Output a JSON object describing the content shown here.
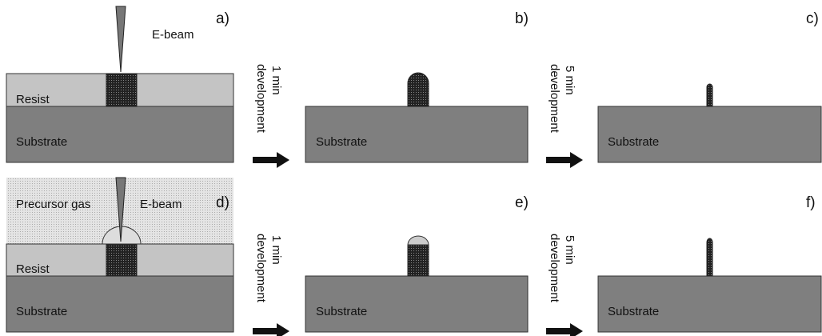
{
  "panels": [
    {
      "label": "a)",
      "beam": "E-beam",
      "resist": "Resist",
      "substrate": "Substrate"
    },
    {
      "label": "b)",
      "substrate": "Substrate"
    },
    {
      "label": "c)",
      "substrate": "Substrate"
    },
    {
      "label": "d)",
      "gas": "Precursor gas",
      "beam": "E-beam",
      "resist": "Resist",
      "substrate": "Substrate"
    },
    {
      "label": "e)",
      "substrate": "Substrate"
    },
    {
      "label": "f)",
      "substrate": "Substrate"
    }
  ],
  "arrows": [
    {
      "lines": [
        "1 min",
        "development"
      ]
    },
    {
      "lines": [
        "5 min",
        "development"
      ]
    },
    {
      "lines": [
        "1 min",
        "development"
      ]
    },
    {
      "lines": [
        "5 min",
        "development"
      ]
    }
  ]
}
